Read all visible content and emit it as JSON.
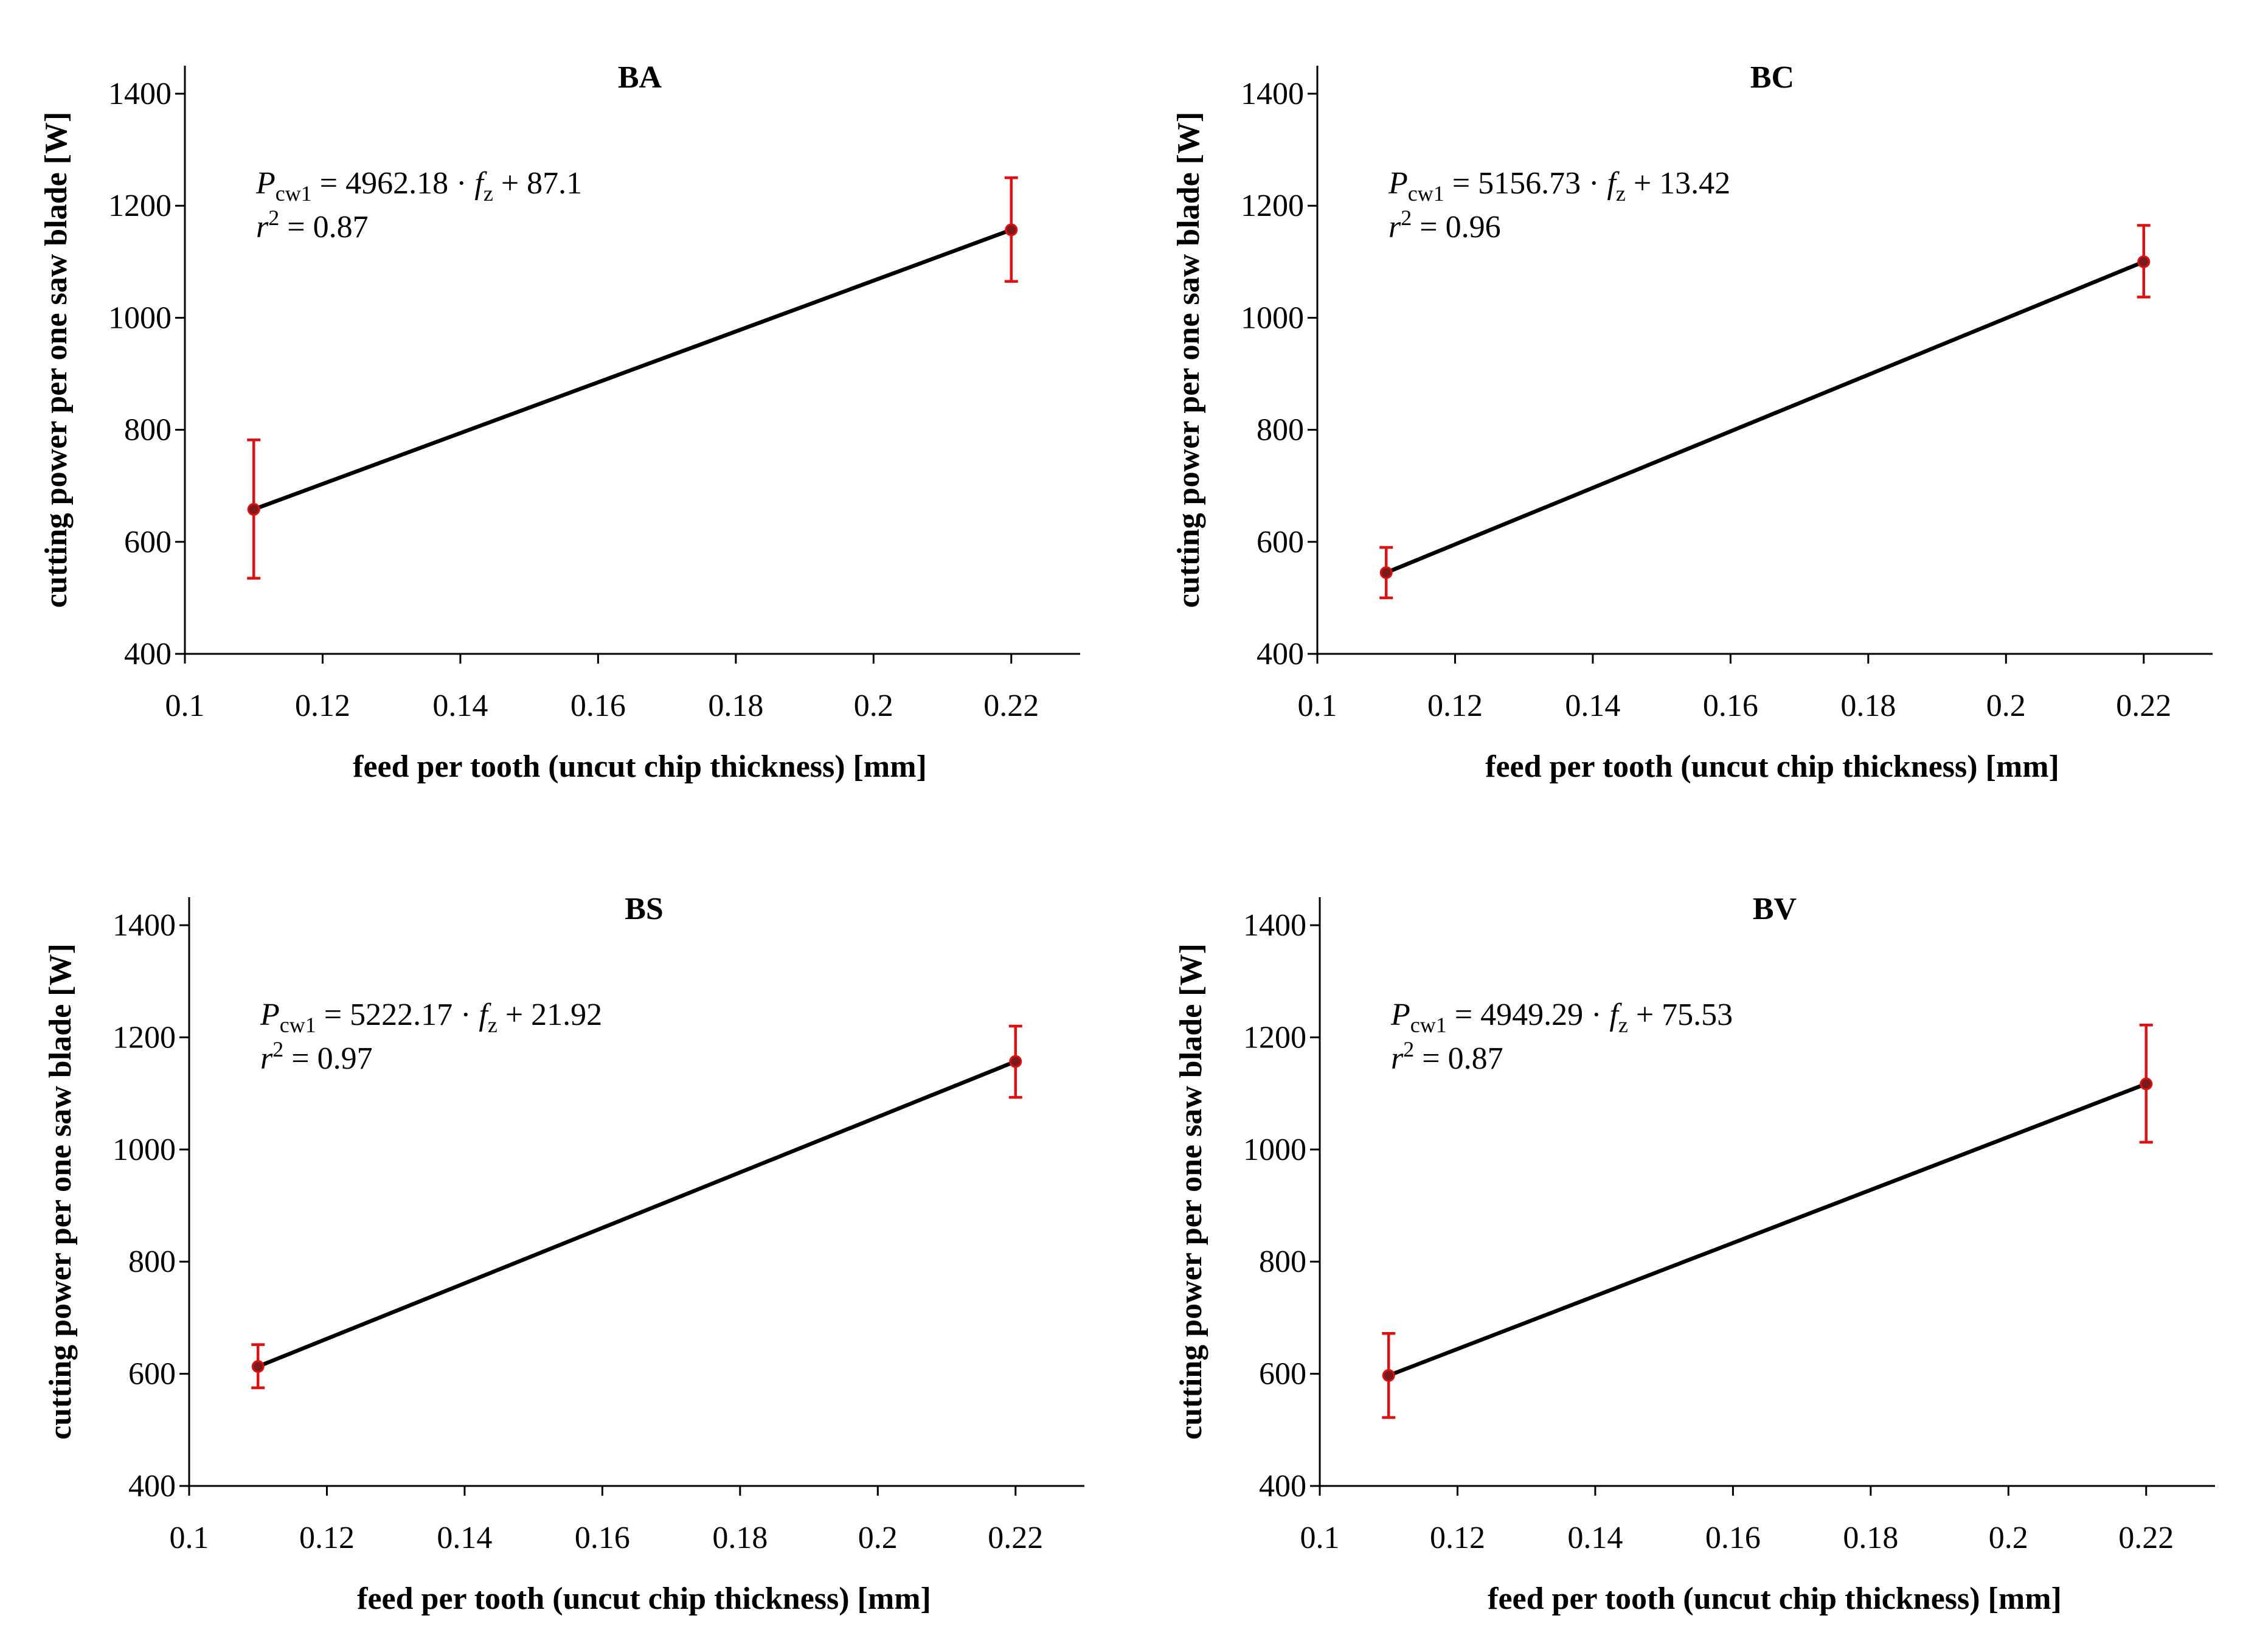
{
  "chart_data": [
    {
      "type": "line",
      "title": "BA",
      "xlabel": "feed per tooth (uncut chip thickness) [mm]",
      "ylabel": "cutting power per one saw blade [W]",
      "xlim": [
        0.1,
        0.23
      ],
      "ylim": [
        400,
        1450
      ],
      "xticks": [
        "0.1",
        "0.12",
        "0.14",
        "0.16",
        "0.18",
        "0.2",
        "0.22"
      ],
      "yticks": [
        "400",
        "600",
        "800",
        "1000",
        "1200",
        "1400"
      ],
      "x": [
        0.11,
        0.22
      ],
      "y": [
        658,
        1157
      ],
      "error": [
        [
          535,
          782
        ],
        [
          1065,
          1250
        ]
      ],
      "equation": {
        "symbol": "P",
        "subscript": "cw1",
        "slope": "4962.18",
        "var": "f",
        "var_sub": "z",
        "intercept": "87.1",
        "r2_label": "r",
        "r2_exp": "2",
        "r2": "0.87"
      }
    },
    {
      "type": "line",
      "title": "BC",
      "xlabel": "feed per tooth (uncut chip thickness) [mm]",
      "ylabel": "cutting power per one saw blade [W]",
      "xlim": [
        0.1,
        0.23
      ],
      "ylim": [
        400,
        1450
      ],
      "xticks": [
        "0.1",
        "0.12",
        "0.14",
        "0.16",
        "0.18",
        "0.2",
        "0.22"
      ],
      "yticks": [
        "400",
        "600",
        "800",
        "1000",
        "1200",
        "1400"
      ],
      "x": [
        0.11,
        0.22
      ],
      "y": [
        545,
        1100
      ],
      "error": [
        [
          500,
          590
        ],
        [
          1037,
          1165
        ]
      ],
      "equation": {
        "symbol": "P",
        "subscript": "cw1",
        "slope": "5156.73",
        "var": "f",
        "var_sub": "z",
        "intercept": "13.42",
        "r2_label": "r",
        "r2_exp": "2",
        "r2": "0.96"
      }
    },
    {
      "type": "line",
      "title": "BS",
      "xlabel": "feed per tooth (uncut chip thickness) [mm]",
      "ylabel": "cutting power per one saw blade [W]",
      "xlim": [
        0.1,
        0.23
      ],
      "ylim": [
        400,
        1450
      ],
      "xticks": [
        "0.1",
        "0.12",
        "0.14",
        "0.16",
        "0.18",
        "0.2",
        "0.22"
      ],
      "yticks": [
        "400",
        "600",
        "800",
        "1000",
        "1200",
        "1400"
      ],
      "x": [
        0.11,
        0.22
      ],
      "y": [
        613,
        1157
      ],
      "error": [
        [
          575,
          652
        ],
        [
          1093,
          1220
        ]
      ],
      "equation": {
        "symbol": "P",
        "subscript": "cw1",
        "slope": "5222.17",
        "var": "f",
        "var_sub": "z",
        "intercept": "21.92",
        "r2_label": "r",
        "r2_exp": "2",
        "r2": "0.97"
      }
    },
    {
      "type": "line",
      "title": "BV",
      "xlabel": "feed per tooth (uncut chip thickness) [mm]",
      "ylabel": "cutting power per one saw blade [W]",
      "xlim": [
        0.1,
        0.23
      ],
      "ylim": [
        400,
        1450
      ],
      "xticks": [
        "0.1",
        "0.12",
        "0.14",
        "0.16",
        "0.18",
        "0.2",
        "0.22"
      ],
      "yticks": [
        "400",
        "600",
        "800",
        "1000",
        "1200",
        "1400"
      ],
      "x": [
        0.11,
        0.22
      ],
      "y": [
        597,
        1117
      ],
      "error": [
        [
          522,
          672
        ],
        [
          1013,
          1222
        ]
      ],
      "equation": {
        "symbol": "P",
        "subscript": "cw1",
        "slope": "4949.29",
        "var": "f",
        "var_sub": "z",
        "intercept": "75.53",
        "r2_label": "r",
        "r2_exp": "2",
        "r2": "0.87"
      }
    }
  ],
  "colors": {
    "line": "#000000",
    "error_bar": "#e01010",
    "point_fill": "#7a1a1a"
  }
}
